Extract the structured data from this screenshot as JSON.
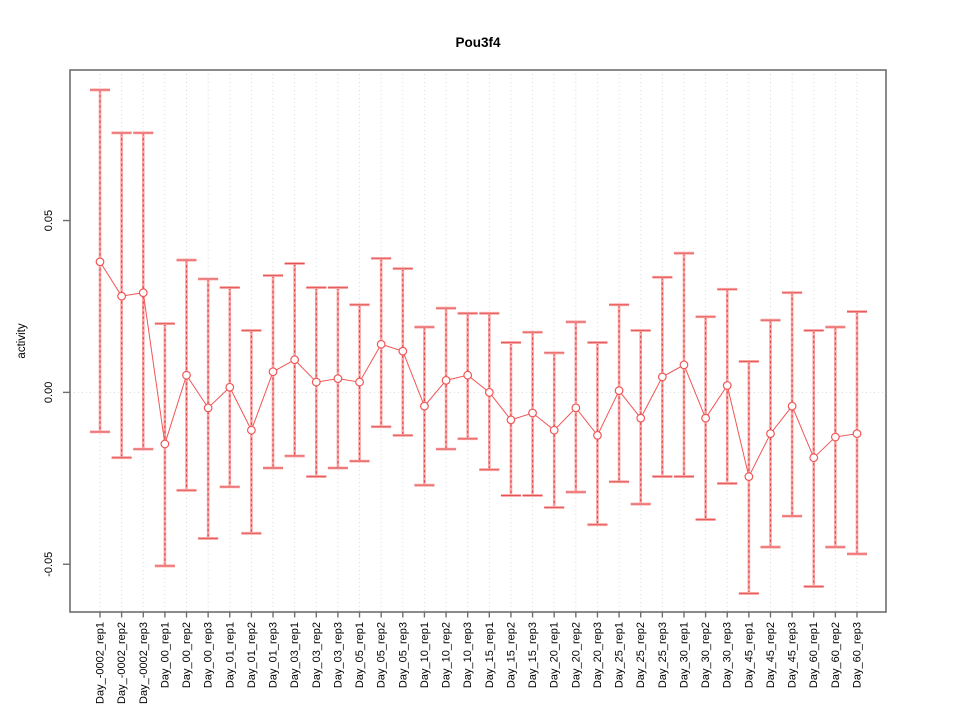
{
  "chart_data": {
    "type": "scatter",
    "title": "Pou3f4",
    "xlabel": "",
    "ylabel": "activity",
    "legend": "none",
    "point_style": "open red circles with error bars, consecutive points connected by a thin red line",
    "grid": "light dotted vertical gridline at each category; light dotted horizontal line at y=0",
    "ylim": [
      -0.0639,
      0.0938
    ],
    "yticks": [
      0.05,
      0,
      -0.05
    ],
    "ytick_labels": [
      "0.05",
      "0.00",
      "-0.05"
    ],
    "categories": [
      "Day_-0002_rep1",
      "Day_-0002_rep2",
      "Day_-0002_rep3",
      "Day_00_rep1",
      "Day_00_rep2",
      "Day_00_rep3",
      "Day_01_rep1",
      "Day_01_rep2",
      "Day_01_rep3",
      "Day_03_rep1",
      "Day_03_rep2",
      "Day_03_rep3",
      "Day_05_rep1",
      "Day_05_rep2",
      "Day_05_rep3",
      "Day_10_rep1",
      "Day_10_rep2",
      "Day_10_rep3",
      "Day_15_rep1",
      "Day_15_rep2",
      "Day_15_rep3",
      "Day_20_rep1",
      "Day_20_rep2",
      "Day_20_rep3",
      "Day_25_rep1",
      "Day_25_rep2",
      "Day_25_rep3",
      "Day_30_rep1",
      "Day_30_rep2",
      "Day_30_rep3",
      "Day_45_rep1",
      "Day_45_rep2",
      "Day_45_rep3",
      "Day_60_rep1",
      "Day_60_rep2",
      "Day_60_rep3"
    ],
    "values": [
      0.038,
      0.028,
      0.029,
      -0.015,
      0.005,
      -0.0045,
      0.0015,
      -0.011,
      0.006,
      0.0095,
      0.003,
      0.004,
      0.003,
      0.014,
      0.012,
      -0.004,
      0.0035,
      0.005,
      0.0,
      -0.008,
      -0.006,
      -0.011,
      -0.0045,
      -0.0125,
      0.0005,
      -0.0075,
      0.0045,
      0.008,
      -0.0075,
      0.002,
      -0.0245,
      -0.012,
      -0.004,
      -0.019,
      -0.013,
      -0.012
    ],
    "error_high": [
      0.088,
      0.0755,
      0.0755,
      0.02,
      0.0385,
      0.033,
      0.0305,
      0.018,
      0.034,
      0.0375,
      0.0305,
      0.0305,
      0.0255,
      0.039,
      0.036,
      0.019,
      0.0245,
      0.023,
      0.023,
      0.0145,
      0.0175,
      0.0115,
      0.0205,
      0.0145,
      0.0255,
      0.018,
      0.0335,
      0.0405,
      0.022,
      0.03,
      0.009,
      0.021,
      0.029,
      0.018,
      0.019,
      0.0235
    ],
    "error_low": [
      -0.0115,
      -0.019,
      -0.0165,
      -0.0505,
      -0.0285,
      -0.0425,
      -0.0275,
      -0.041,
      -0.022,
      -0.0185,
      -0.0245,
      -0.022,
      -0.02,
      -0.01,
      -0.0125,
      -0.027,
      -0.0165,
      -0.0135,
      -0.0225,
      -0.03,
      -0.03,
      -0.0335,
      -0.029,
      -0.0385,
      -0.026,
      -0.0325,
      -0.0245,
      -0.0245,
      -0.037,
      -0.0265,
      -0.0585,
      -0.045,
      -0.036,
      -0.0565,
      -0.045,
      -0.047
    ]
  },
  "styles": {
    "background": "#ffffff",
    "point_color": "#f25555",
    "bar_color": "#f9a3a3",
    "bar_dash_color": "#e04646",
    "grid_color": "#dadada",
    "box_color": "#6e6e6e",
    "text_color": "#000000"
  }
}
